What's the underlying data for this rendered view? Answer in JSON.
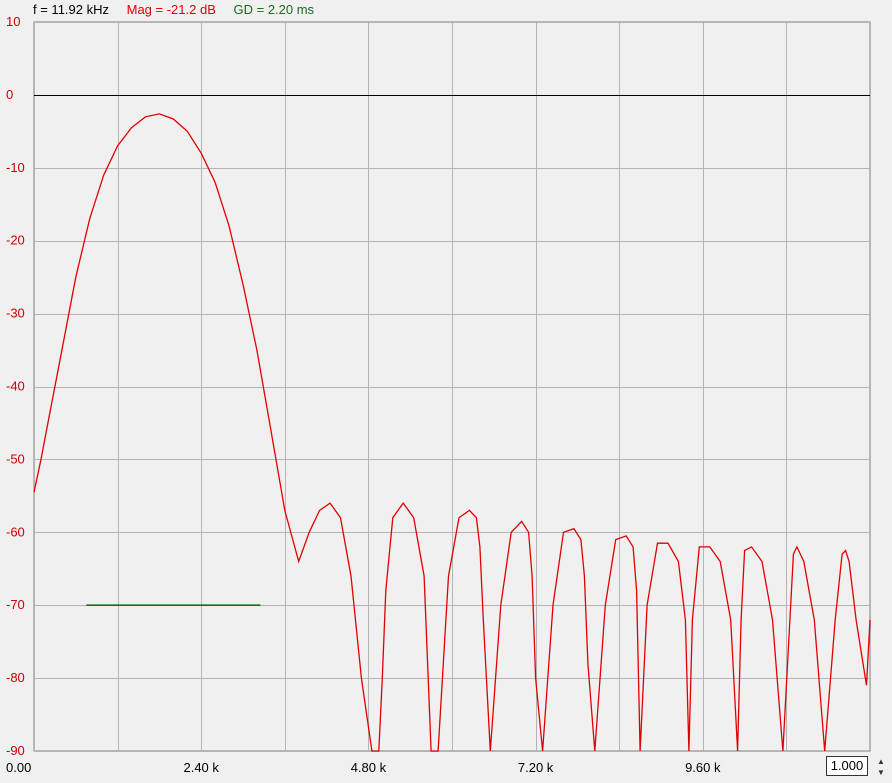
{
  "readout": {
    "freq": "f = 11.92 kHz",
    "mag": "Mag = -21.2 dB",
    "gd": "GD = 2.20 ms"
  },
  "colors": {
    "freq": "#000000",
    "mag": "#e00000",
    "gd": "#1a6b1a",
    "grid": "#b4b4b4",
    "zero_line": "#000000",
    "plot_bg": "#f0f0f0"
  },
  "zoom_value": "1.000",
  "chart_data": {
    "type": "line",
    "title": "",
    "xlabel": "",
    "ylabel": "",
    "xlim": [
      0,
      12000
    ],
    "ylim": [
      -90,
      10
    ],
    "grid": true,
    "y_ticks": [
      "10",
      "0",
      "-10",
      "-20",
      "-30",
      "-40",
      "-50",
      "-60",
      "-70",
      "-80",
      "-90"
    ],
    "y_tick_values": [
      10,
      0,
      -10,
      -20,
      -30,
      -40,
      -50,
      -60,
      -70,
      -80,
      -90
    ],
    "x_ticks": [
      "0.00",
      "2.40 k",
      "4.80 k",
      "7.20 k",
      "9.60 k"
    ],
    "x_tick_values": [
      0,
      2400,
      4800,
      7200,
      9600
    ],
    "x_grid_values": [
      0,
      1200,
      2400,
      3600,
      4800,
      6000,
      7200,
      8400,
      9600,
      10800,
      12000
    ],
    "reference_line_y": 0,
    "series": [
      {
        "color": "#e00000",
        "x": [
          0,
          100,
          200,
          400,
          600,
          800,
          1000,
          1200,
          1400,
          1600,
          1800,
          2000,
          2200,
          2400,
          2600,
          2800,
          3000,
          3200,
          3400,
          3600,
          3800,
          3950,
          4100,
          4250,
          4400,
          4550,
          4700,
          4850,
          4950,
          5000,
          5050,
          5150,
          5300,
          5450,
          5600,
          5650,
          5700,
          5800,
          5950,
          6100,
          6250,
          6350,
          6400,
          6450,
          6550,
          6700,
          6850,
          7000,
          7100,
          7150,
          7200,
          7300,
          7450,
          7600,
          7750,
          7850,
          7900,
          7950,
          8050,
          8200,
          8350,
          8500,
          8600,
          8650,
          8700,
          8800,
          8950,
          9100,
          9250,
          9350,
          9400,
          9450,
          9550,
          9700,
          9850,
          10000,
          10100,
          10150,
          10200,
          10300,
          10450,
          10600,
          10750,
          10850,
          10900,
          10950,
          11050,
          11200,
          11350,
          11500,
          11600,
          11650,
          11700,
          11800,
          11950,
          12000
        ],
        "y": [
          -54.5,
          -50,
          -45,
          -35,
          -25,
          -17,
          -11,
          -7,
          -4.5,
          -3,
          -2.6,
          -3.3,
          -5,
          -8,
          -12,
          -18,
          -26,
          -35,
          -46,
          -57,
          -64,
          -60,
          -57,
          -56,
          -58,
          -66,
          -80,
          -90,
          -90,
          -80,
          -68,
          -58,
          -56,
          -58,
          -66,
          -78,
          -90,
          -90,
          -66,
          -58,
          -57,
          -58,
          -62,
          -72,
          -90,
          -70,
          -60,
          -58.5,
          -60,
          -66,
          -80,
          -90,
          -70,
          -60,
          -59.5,
          -61,
          -66,
          -78,
          -90,
          -70,
          -61,
          -60.5,
          -62,
          -68,
          -90,
          -70,
          -61.5,
          -61.5,
          -64,
          -72,
          -90,
          -72,
          -62,
          -62,
          -64,
          -72,
          -90,
          -72,
          -62.5,
          -62,
          -64,
          -72,
          -90,
          -72,
          -63,
          -62,
          -64,
          -72,
          -90,
          -72,
          -63,
          -62.5,
          -64,
          -72,
          -81,
          -72
        ]
      },
      {
        "color": "#1a6b1a",
        "x": [
          750,
          3250
        ],
        "y": [
          -70,
          -70
        ]
      }
    ]
  }
}
